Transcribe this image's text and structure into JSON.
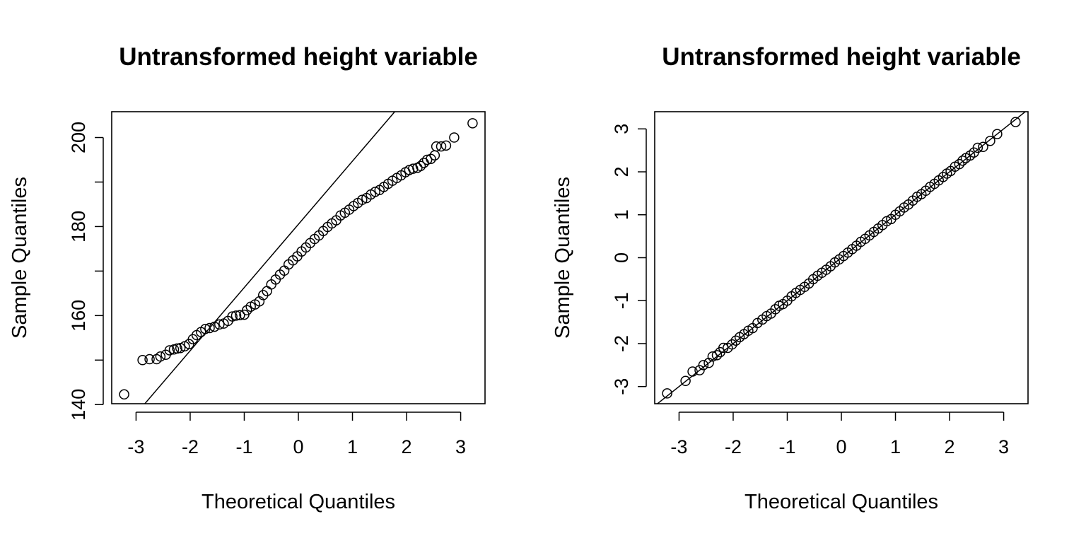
{
  "chart_data": [
    {
      "type": "scatter",
      "title": "Untransformed height variable",
      "xlabel": "Theoretical Quantiles",
      "ylabel": "Sample Quantiles",
      "xlim": [
        -3.45,
        3.45
      ],
      "ylim": [
        140.2,
        205.8
      ],
      "x_ticks": [
        -3,
        -2,
        -1,
        0,
        1,
        2,
        3
      ],
      "x_tick_labels": [
        "-3",
        "-2",
        "-1",
        "0",
        "1",
        "2",
        "3"
      ],
      "y_ticks": [
        140,
        150,
        160,
        170,
        180,
        190,
        200
      ],
      "y_tick_labels": [
        "140",
        "",
        "160",
        "",
        "180",
        "",
        "200"
      ],
      "grid": false,
      "legend": "none",
      "reference_line": {
        "slope": 14.2,
        "intercept": 180.5
      },
      "points": [
        [
          -3.22,
          142.3
        ],
        [
          -2.88,
          150.0
        ],
        [
          -2.75,
          150.2
        ],
        [
          -2.62,
          150.2
        ],
        [
          -2.55,
          150.8
        ],
        [
          -2.45,
          151.2
        ],
        [
          -2.38,
          152.2
        ],
        [
          -2.3,
          152.4
        ],
        [
          -2.24,
          152.6
        ],
        [
          -2.18,
          152.7
        ],
        [
          -2.1,
          153.1
        ],
        [
          -2.02,
          153.6
        ],
        [
          -1.95,
          154.7
        ],
        [
          -1.88,
          155.6
        ],
        [
          -1.8,
          156.3
        ],
        [
          -1.72,
          157.0
        ],
        [
          -1.64,
          157.2
        ],
        [
          -1.55,
          157.5
        ],
        [
          -1.46,
          158.0
        ],
        [
          -1.38,
          158.2
        ],
        [
          -1.3,
          158.8
        ],
        [
          -1.22,
          159.8
        ],
        [
          -1.15,
          160.0
        ],
        [
          -1.08,
          160.1
        ],
        [
          -1.0,
          160.2
        ],
        [
          -0.95,
          161.2
        ],
        [
          -0.88,
          162.0
        ],
        [
          -0.8,
          162.5
        ],
        [
          -0.72,
          163.2
        ],
        [
          -0.65,
          164.6
        ],
        [
          -0.58,
          165.5
        ],
        [
          -0.5,
          167.0
        ],
        [
          -0.42,
          168.1
        ],
        [
          -0.34,
          169.2
        ],
        [
          -0.26,
          170.1
        ],
        [
          -0.18,
          171.5
        ],
        [
          -0.1,
          172.4
        ],
        [
          -0.02,
          173.3
        ],
        [
          0.06,
          174.4
        ],
        [
          0.14,
          175.3
        ],
        [
          0.22,
          176.3
        ],
        [
          0.3,
          177.2
        ],
        [
          0.38,
          178.0
        ],
        [
          0.46,
          179.0
        ],
        [
          0.54,
          179.9
        ],
        [
          0.62,
          180.7
        ],
        [
          0.7,
          181.4
        ],
        [
          0.78,
          182.5
        ],
        [
          0.86,
          183.1
        ],
        [
          0.94,
          183.8
        ],
        [
          1.02,
          184.6
        ],
        [
          1.1,
          185.3
        ],
        [
          1.18,
          186.0
        ],
        [
          1.26,
          186.4
        ],
        [
          1.34,
          187.2
        ],
        [
          1.42,
          187.8
        ],
        [
          1.5,
          188.2
        ],
        [
          1.58,
          188.9
        ],
        [
          1.66,
          189.6
        ],
        [
          1.74,
          190.3
        ],
        [
          1.82,
          190.9
        ],
        [
          1.9,
          191.5
        ],
        [
          1.98,
          192.2
        ],
        [
          2.05,
          192.7
        ],
        [
          2.12,
          193.0
        ],
        [
          2.2,
          193.2
        ],
        [
          2.26,
          193.6
        ],
        [
          2.32,
          194.3
        ],
        [
          2.38,
          195.0
        ],
        [
          2.45,
          195.2
        ],
        [
          2.52,
          196.0
        ],
        [
          2.55,
          198.0
        ],
        [
          2.64,
          198.0
        ],
        [
          2.73,
          198.2
        ],
        [
          2.88,
          200.0
        ],
        [
          3.22,
          203.2
        ]
      ]
    },
    {
      "type": "scatter",
      "title": "Untransformed height variable",
      "xlabel": "Theoretical Quantiles",
      "ylabel": "Sample Quantiles",
      "xlim": [
        -3.45,
        3.45
      ],
      "ylim": [
        -3.4,
        3.4
      ],
      "x_ticks": [
        -3,
        -2,
        -1,
        0,
        1,
        2,
        3
      ],
      "x_tick_labels": [
        "-3",
        "-2",
        "-1",
        "0",
        "1",
        "2",
        "3"
      ],
      "y_ticks": [
        -3,
        -2,
        -1,
        0,
        1,
        2,
        3
      ],
      "y_tick_labels": [
        "-3",
        "-2",
        "-1",
        "0",
        "1",
        "2",
        "3"
      ],
      "grid": false,
      "legend": "none",
      "reference_line": {
        "slope": 1,
        "intercept": 0
      },
      "points": [
        [
          -3.22,
          -3.16
        ],
        [
          -2.88,
          -2.87
        ],
        [
          -2.75,
          -2.65
        ],
        [
          -2.62,
          -2.62
        ],
        [
          -2.55,
          -2.5
        ],
        [
          -2.45,
          -2.45
        ],
        [
          -2.38,
          -2.3
        ],
        [
          -2.3,
          -2.27
        ],
        [
          -2.24,
          -2.2
        ],
        [
          -2.18,
          -2.1
        ],
        [
          -2.1,
          -2.1
        ],
        [
          -2.02,
          -2.02
        ],
        [
          -1.95,
          -1.93
        ],
        [
          -1.88,
          -1.85
        ],
        [
          -1.8,
          -1.78
        ],
        [
          -1.72,
          -1.7
        ],
        [
          -1.64,
          -1.64
        ],
        [
          -1.55,
          -1.52
        ],
        [
          -1.46,
          -1.44
        ],
        [
          -1.38,
          -1.36
        ],
        [
          -1.3,
          -1.3
        ],
        [
          -1.22,
          -1.2
        ],
        [
          -1.15,
          -1.12
        ],
        [
          -1.08,
          -1.08
        ],
        [
          -1.0,
          -1.0
        ],
        [
          -0.92,
          -0.9
        ],
        [
          -0.84,
          -0.82
        ],
        [
          -0.76,
          -0.75
        ],
        [
          -0.68,
          -0.68
        ],
        [
          -0.6,
          -0.6
        ],
        [
          -0.52,
          -0.5
        ],
        [
          -0.44,
          -0.42
        ],
        [
          -0.36,
          -0.35
        ],
        [
          -0.28,
          -0.28
        ],
        [
          -0.2,
          -0.2
        ],
        [
          -0.12,
          -0.11
        ],
        [
          -0.04,
          -0.04
        ],
        [
          0.04,
          0.04
        ],
        [
          0.12,
          0.12
        ],
        [
          0.2,
          0.2
        ],
        [
          0.28,
          0.28
        ],
        [
          0.36,
          0.37
        ],
        [
          0.44,
          0.44
        ],
        [
          0.52,
          0.52
        ],
        [
          0.6,
          0.6
        ],
        [
          0.68,
          0.68
        ],
        [
          0.76,
          0.76
        ],
        [
          0.84,
          0.85
        ],
        [
          0.92,
          0.9
        ],
        [
          1.0,
          1.0
        ],
        [
          1.08,
          1.08
        ],
        [
          1.16,
          1.17
        ],
        [
          1.24,
          1.24
        ],
        [
          1.32,
          1.33
        ],
        [
          1.4,
          1.42
        ],
        [
          1.48,
          1.48
        ],
        [
          1.56,
          1.56
        ],
        [
          1.64,
          1.65
        ],
        [
          1.72,
          1.72
        ],
        [
          1.8,
          1.8
        ],
        [
          1.88,
          1.88
        ],
        [
          1.95,
          1.96
        ],
        [
          2.02,
          2.02
        ],
        [
          2.1,
          2.12
        ],
        [
          2.18,
          2.18
        ],
        [
          2.24,
          2.26
        ],
        [
          2.3,
          2.32
        ],
        [
          2.38,
          2.38
        ],
        [
          2.45,
          2.45
        ],
        [
          2.52,
          2.56
        ],
        [
          2.62,
          2.58
        ],
        [
          2.75,
          2.72
        ],
        [
          2.88,
          2.88
        ],
        [
          3.22,
          3.16
        ]
      ]
    }
  ]
}
